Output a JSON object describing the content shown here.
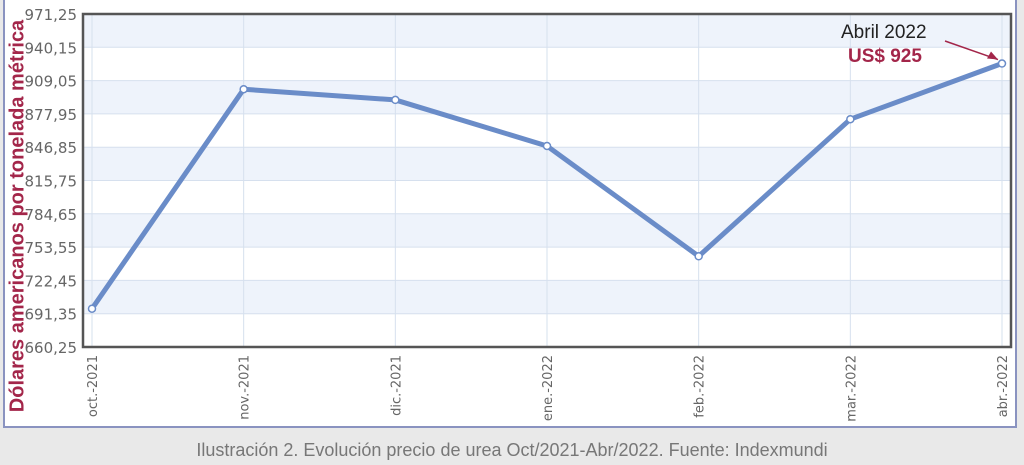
{
  "chart_data": {
    "type": "line",
    "categories": [
      "oct.-2021",
      "nov.-2021",
      "dic.-2021",
      "ene.-2022",
      "feb.-2022",
      "mar.-2022",
      "abr.-2022"
    ],
    "series": [
      {
        "values": [
          696,
          901,
          891,
          848,
          745,
          873,
          925
        ],
        "color": "#6a8cc8"
      }
    ],
    "ylabel": "Dólares americanos por tonelada métrica",
    "ylim": [
      660.25,
      971.25
    ],
    "yticks": [
      "660,25",
      "691,35",
      "722,45",
      "753,55",
      "784,65",
      "815,75",
      "846,85",
      "877,95",
      "909,05",
      "940,15",
      "971,25"
    ],
    "grid": true,
    "annotation": {
      "line1": "Abril 2022",
      "line2": "US$ 925",
      "color": "#a3264a"
    }
  },
  "caption": "Ilustración 2. Evolución precio de urea Oct/2021-Abr/2022. Fuente: Indexmundi"
}
